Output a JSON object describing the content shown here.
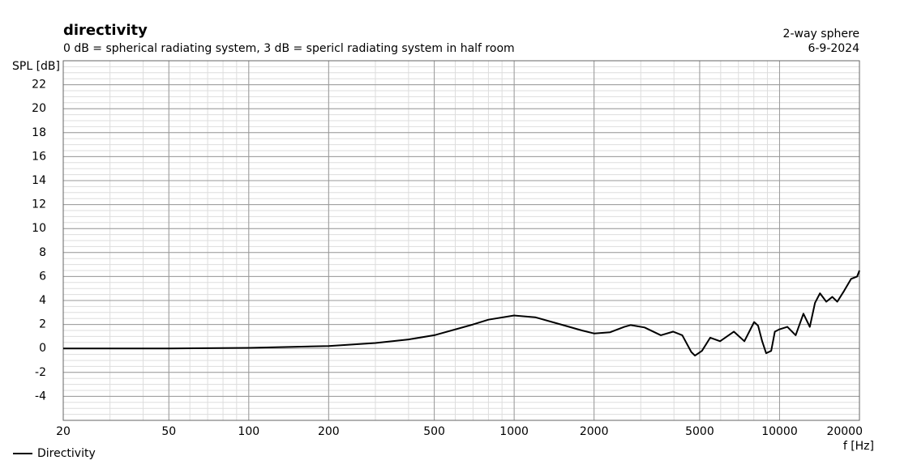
{
  "chart_data": {
    "type": "line",
    "title": "directivity",
    "subtitle": "0 dB = spherical radiating system, 3 dB = spericl radiating system in half room",
    "note_lines": [
      "2-way sphere",
      "6-9-2024"
    ],
    "y_label": "SPL [dB]",
    "x_label": "f [Hz]",
    "x_scale": "log",
    "grid": true,
    "minor_grid": true,
    "legend": "bottom-left",
    "xlim": [
      20,
      20000
    ],
    "xticks": [
      20,
      50,
      100,
      200,
      500,
      1000,
      2000,
      5000,
      10000,
      20000
    ],
    "ylim": [
      -6,
      24
    ],
    "yticks": [
      -4,
      -2,
      0,
      2,
      4,
      6,
      8,
      10,
      12,
      14,
      16,
      18,
      20,
      22
    ],
    "x": [
      20,
      50,
      100,
      200,
      300,
      400,
      500,
      700,
      800,
      1000,
      1200,
      1500,
      1800,
      2000,
      2300,
      2600,
      2750,
      3100,
      3570,
      3970,
      4300,
      4650,
      4800,
      5100,
      5480,
      5970,
      6730,
      7370,
      8020,
      8300,
      8600,
      8900,
      9300,
      9600,
      10000,
      10700,
      11500,
      12300,
      13000,
      13600,
      14200,
      15000,
      15800,
      16500,
      17500,
      18600,
      19600,
      20000
    ],
    "series": [
      {
        "name": "Directivity",
        "color": "#000000",
        "values": [
          0,
          0,
          0.05,
          0.2,
          0.45,
          0.75,
          1.1,
          2.0,
          2.4,
          2.75,
          2.6,
          2.0,
          1.5,
          1.25,
          1.35,
          1.8,
          1.95,
          1.75,
          1.1,
          1.4,
          1.1,
          -0.3,
          -0.6,
          -0.2,
          0.9,
          0.6,
          1.4,
          0.6,
          2.2,
          1.9,
          0.6,
          -0.4,
          -0.2,
          1.4,
          1.6,
          1.8,
          1.1,
          2.9,
          1.8,
          3.8,
          4.6,
          3.9,
          4.3,
          3.9,
          4.8,
          5.8,
          6.0,
          6.5
        ]
      }
    ]
  }
}
